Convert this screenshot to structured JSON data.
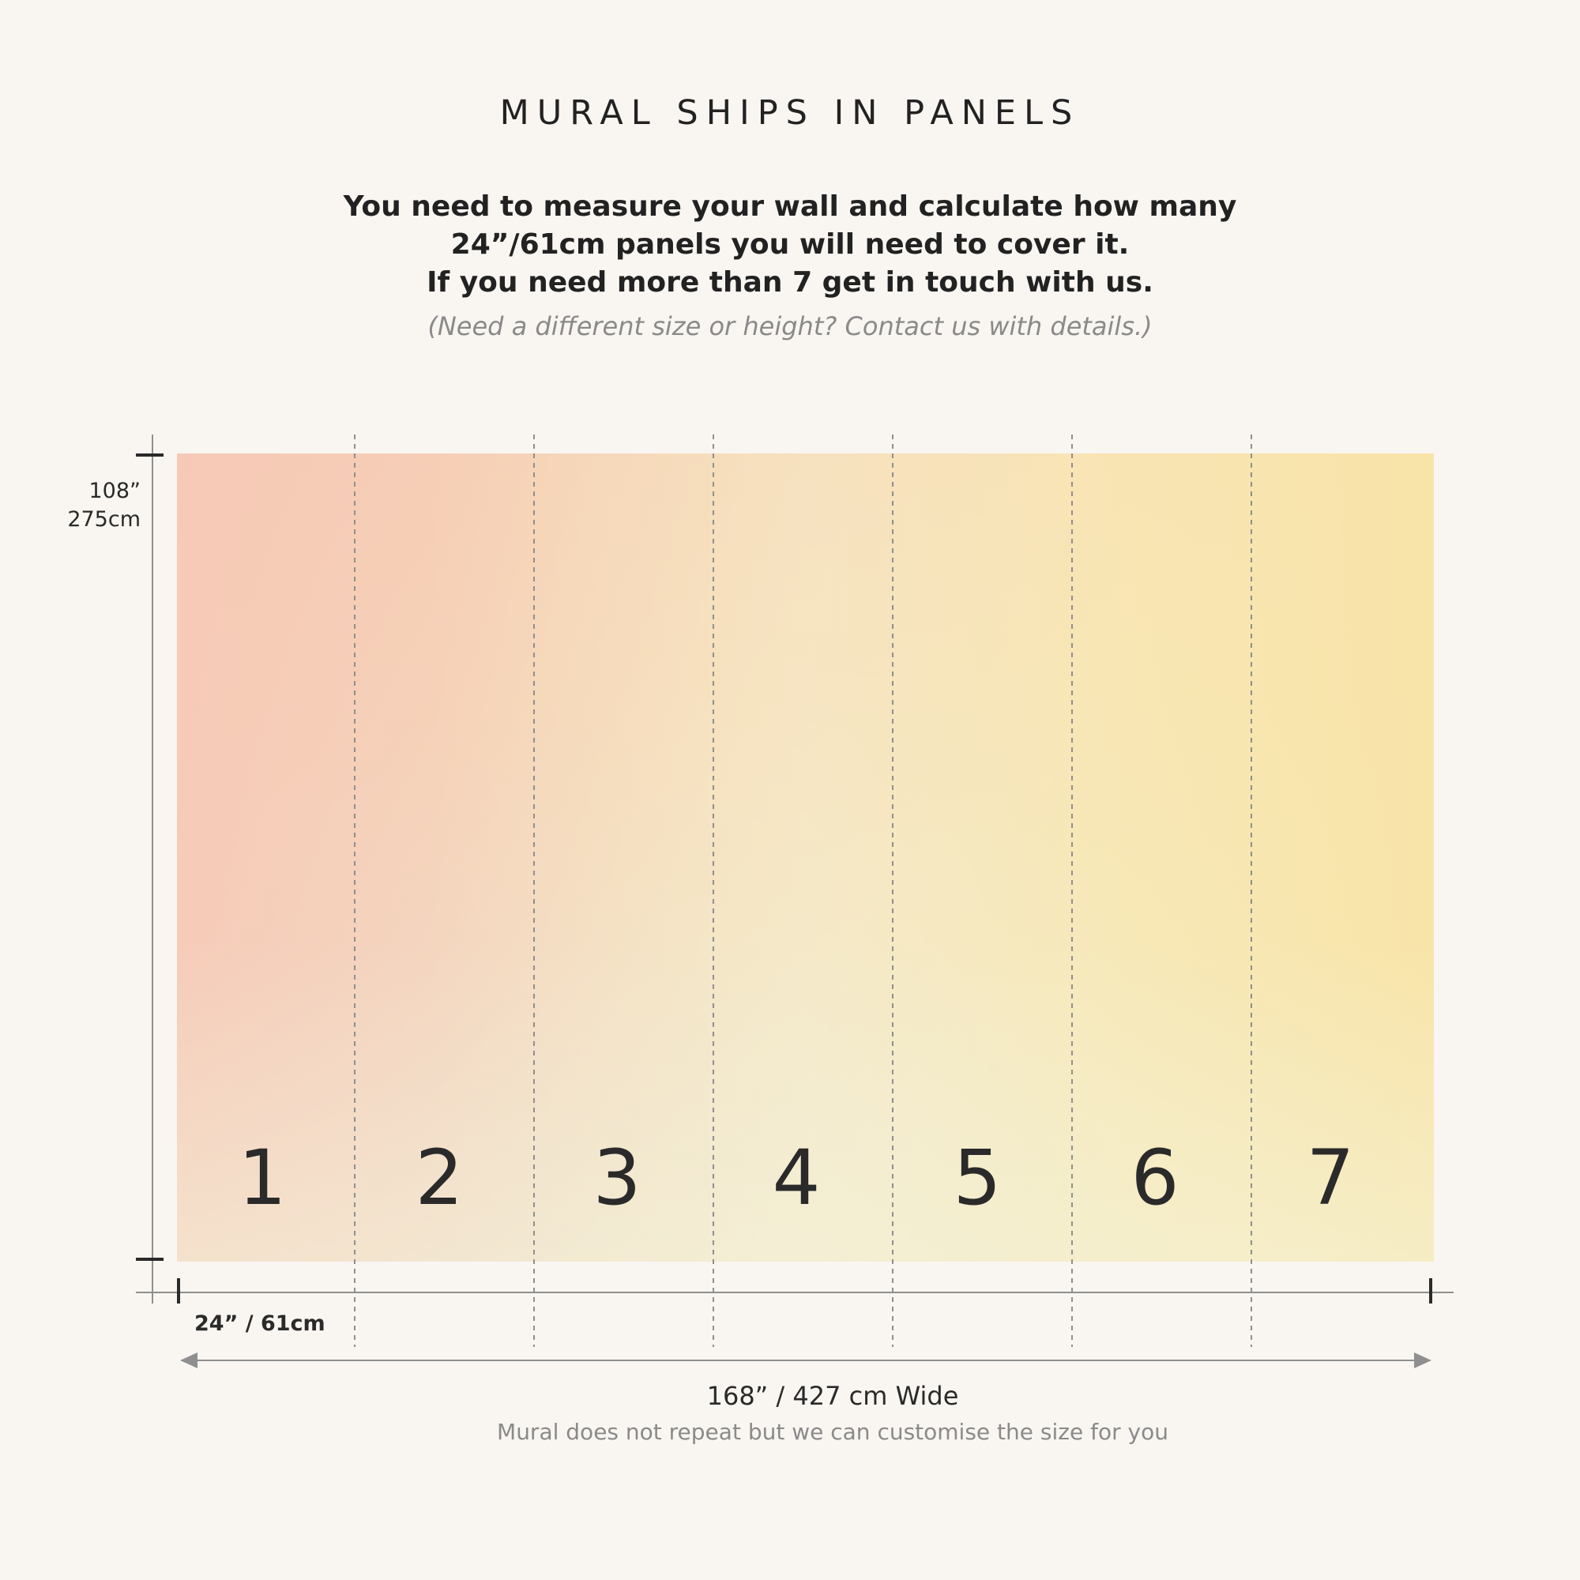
{
  "title": "MURAL SHIPS IN PANELS",
  "intro_lines": [
    "You need to measure your wall and calculate how many",
    "24”/61cm panels you will need to cover it.",
    "If you need more than 7 get in touch with us."
  ],
  "note": "(Need a different size or height? Contact us with details.)",
  "height": {
    "inches": "108”",
    "cm": "275cm"
  },
  "panels": [
    "1",
    "2",
    "3",
    "4",
    "5",
    "6",
    "7"
  ],
  "panel_width_label": "24” / 61cm",
  "total_width_label": "168” / 427 cm Wide",
  "repeat_note": "Mural does not repeat but we can customise the size for you",
  "colors": {
    "background": "#f9f6f1",
    "gradient_top_left": "#f6cbb8",
    "gradient_top_right": "#f8e4a8",
    "gradient_bottom_left": "#dcecf2",
    "line": "#8f8f8f",
    "text": "#2a2a2a"
  }
}
